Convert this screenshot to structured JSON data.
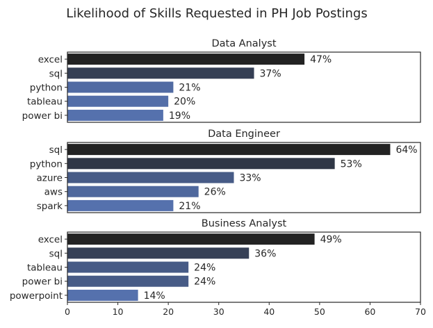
{
  "chart_data": {
    "type": "bar",
    "orientation": "horizontal",
    "title": "Likelihood of Skills Requested in PH Job Postings",
    "xlim": [
      0,
      70
    ],
    "xticks": [
      "0",
      "10",
      "20",
      "30",
      "40",
      "50",
      "60",
      "70"
    ],
    "grid": false,
    "colors": {
      "dark": "#232323",
      "light": "#5571ad"
    },
    "panels": [
      {
        "title": "Data Analyst",
        "categories": [
          "excel",
          "sql",
          "python",
          "tableau",
          "power bi"
        ],
        "values": [
          47,
          37,
          21,
          20,
          19
        ],
        "labels": [
          "47%",
          "37%",
          "21%",
          "20%",
          "19%"
        ]
      },
      {
        "title": "Data Engineer",
        "categories": [
          "sql",
          "python",
          "azure",
          "aws",
          "spark"
        ],
        "values": [
          64,
          53,
          33,
          26,
          21
        ],
        "labels": [
          "64%",
          "53%",
          "33%",
          "26%",
          "21%"
        ]
      },
      {
        "title": "Business Analyst",
        "categories": [
          "excel",
          "sql",
          "tableau",
          "power bi",
          "powerpoint"
        ],
        "values": [
          49,
          36,
          24,
          24,
          14
        ],
        "labels": [
          "49%",
          "36%",
          "24%",
          "24%",
          "14%"
        ]
      }
    ]
  }
}
